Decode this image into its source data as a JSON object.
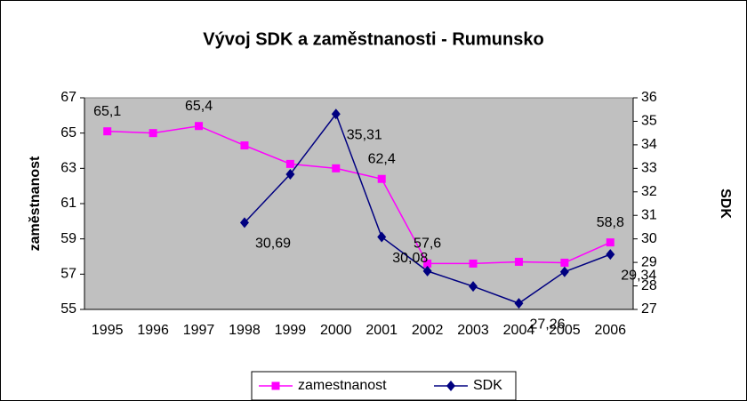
{
  "chart_data": {
    "type": "line",
    "title": "Vývoj SDK a zaměstnanosti - Rumunsko",
    "ylabel": "zaměstnanost",
    "y2label": "SDK",
    "categories": [
      "1995",
      "1996",
      "1997",
      "1998",
      "1999",
      "2000",
      "2001",
      "2002",
      "2003",
      "2004",
      "2005",
      "2006"
    ],
    "series": [
      {
        "name": "zamestnanost",
        "color": "#ff00ff",
        "marker": "square",
        "values": [
          65.1,
          65.0,
          65.4,
          64.3,
          63.25,
          63.0,
          62.4,
          57.6,
          57.6,
          57.7,
          57.65,
          58.8
        ],
        "value_labels": [
          "65,1",
          null,
          "65,4",
          null,
          null,
          null,
          "62,4",
          "57,6",
          null,
          null,
          null,
          "58,8"
        ]
      },
      {
        "name": "SDK",
        "color": "#000080",
        "marker": "diamond",
        "axis": "y2",
        "values": [
          null,
          null,
          null,
          30.69,
          32.75,
          35.31,
          30.08,
          28.63,
          27.98,
          27.26,
          28.6,
          29.34
        ],
        "value_labels": [
          null,
          null,
          null,
          "30,69",
          null,
          "35,31",
          "30,08",
          null,
          null,
          "27,26",
          null,
          "29,34"
        ]
      }
    ],
    "ylim": [
      55,
      67
    ],
    "yticks": [
      55,
      57,
      59,
      61,
      63,
      65,
      67
    ],
    "y2lim": [
      27,
      36
    ],
    "y2ticks": [
      27,
      28,
      29,
      30,
      31,
      32,
      33,
      34,
      35,
      36
    ],
    "legend": "bottom"
  }
}
